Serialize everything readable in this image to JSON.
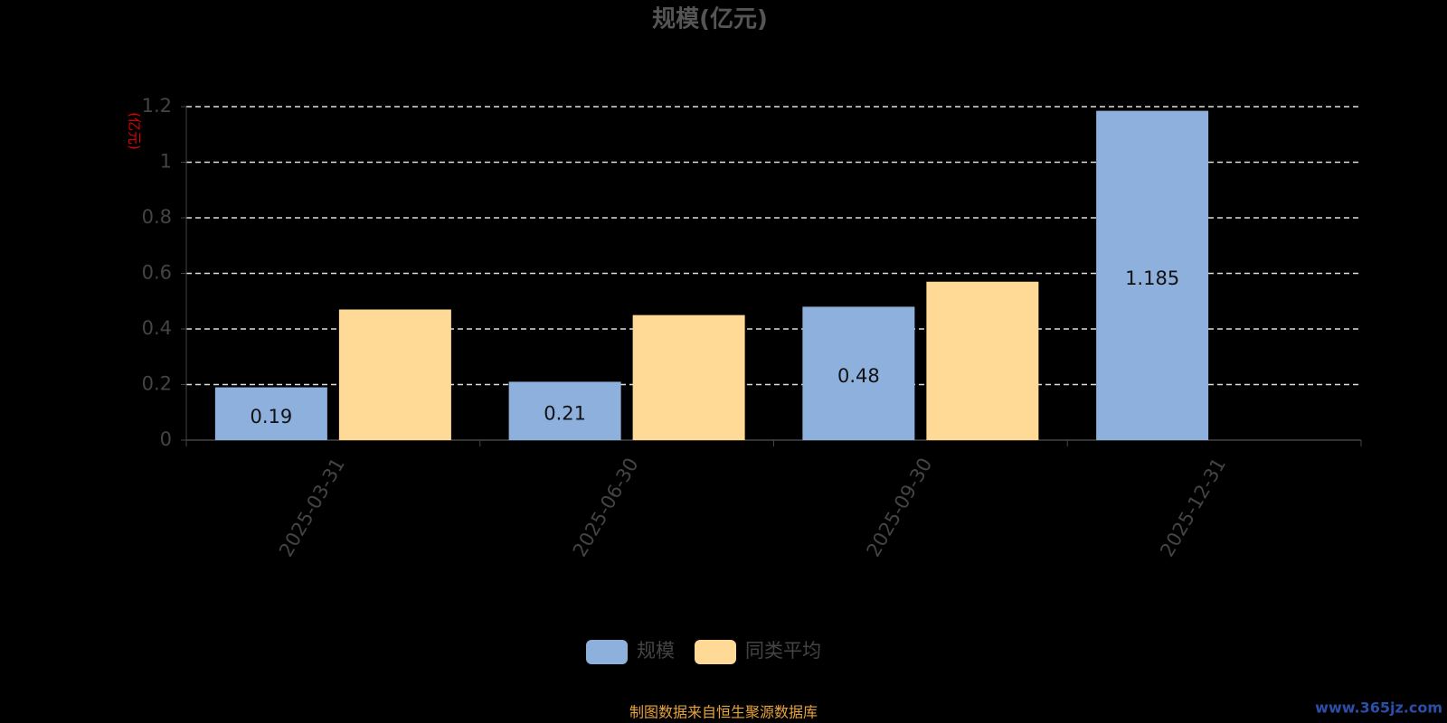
{
  "chart_data": {
    "type": "bar",
    "title": "规模(亿元)",
    "y_axis_label": "(亿元)",
    "categories": [
      "2025-03-31",
      "2025-06-30",
      "2025-09-30",
      "2025-12-31"
    ],
    "series": [
      {
        "name": "规模",
        "color": "#8eb0dc",
        "values": [
          0.19,
          0.21,
          0.48,
          1.185
        ],
        "show_labels": true
      },
      {
        "name": "同类平均",
        "color": "#ffd996",
        "values": [
          0.47,
          0.45,
          0.57,
          null
        ],
        "show_labels": false
      }
    ],
    "ylim": [
      0,
      1.2
    ],
    "yticks": [
      0,
      0.2,
      0.4,
      0.6,
      0.8,
      1,
      1.2
    ],
    "grid": true,
    "legend": "bottom",
    "source_note": "制图数据来自恒生聚源数据库",
    "watermark": "www.365jz.com"
  }
}
